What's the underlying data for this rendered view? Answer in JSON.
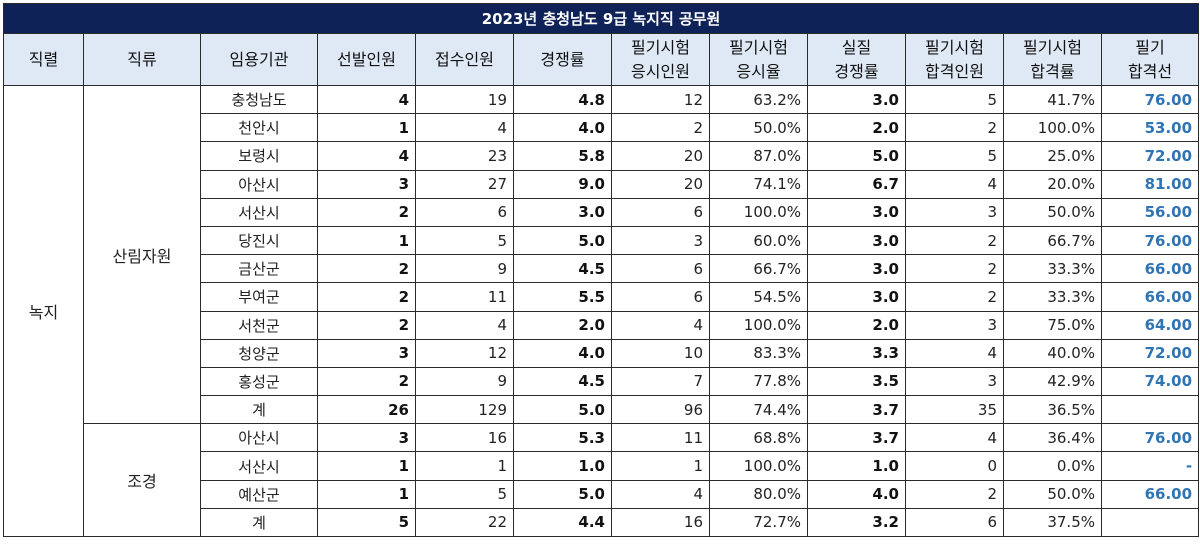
{
  "title": "2023년 충청남도 9급 녹지직 공무원",
  "headers": [
    [
      "직렬"
    ],
    [
      "직류"
    ],
    [
      "임용기관"
    ],
    [
      "선발인원"
    ],
    [
      "접수인원"
    ],
    [
      "경쟁률"
    ],
    [
      "필기시험",
      "응시인원"
    ],
    [
      "필기시험",
      "응시율"
    ],
    [
      "실질",
      "경쟁률"
    ],
    [
      "필기시험",
      "합격인원"
    ],
    [
      "필기시험",
      "합격률"
    ],
    [
      "필기",
      "합격선"
    ]
  ],
  "series_label": "녹지",
  "groups": [
    {
      "name": "산림자원",
      "rows": [
        [
          "충청남도",
          "4",
          "19",
          "4.8",
          "12",
          "63.2%",
          "3.0",
          "5",
          "41.7%",
          "76.00"
        ],
        [
          "천안시",
          "1",
          "4",
          "4.0",
          "2",
          "50.0%",
          "2.0",
          "2",
          "100.0%",
          "53.00"
        ],
        [
          "보령시",
          "4",
          "23",
          "5.8",
          "20",
          "87.0%",
          "5.0",
          "5",
          "25.0%",
          "72.00"
        ],
        [
          "아산시",
          "3",
          "27",
          "9.0",
          "20",
          "74.1%",
          "6.7",
          "4",
          "20.0%",
          "81.00"
        ],
        [
          "서산시",
          "2",
          "6",
          "3.0",
          "6",
          "100.0%",
          "3.0",
          "3",
          "50.0%",
          "56.00"
        ],
        [
          "당진시",
          "1",
          "5",
          "5.0",
          "3",
          "60.0%",
          "3.0",
          "2",
          "66.7%",
          "76.00"
        ],
        [
          "금산군",
          "2",
          "9",
          "4.5",
          "6",
          "66.7%",
          "3.0",
          "2",
          "33.3%",
          "66.00"
        ],
        [
          "부여군",
          "2",
          "11",
          "5.5",
          "6",
          "54.5%",
          "3.0",
          "2",
          "33.3%",
          "66.00"
        ],
        [
          "서천군",
          "2",
          "4",
          "2.0",
          "4",
          "100.0%",
          "2.0",
          "3",
          "75.0%",
          "64.00"
        ],
        [
          "청양군",
          "3",
          "12",
          "4.0",
          "10",
          "83.3%",
          "3.3",
          "4",
          "40.0%",
          "72.00"
        ],
        [
          "홍성군",
          "2",
          "9",
          "4.5",
          "7",
          "77.8%",
          "3.5",
          "3",
          "42.9%",
          "74.00"
        ],
        [
          "계",
          "26",
          "129",
          "5.0",
          "96",
          "74.4%",
          "3.7",
          "35",
          "36.5%",
          ""
        ]
      ]
    },
    {
      "name": "조경",
      "rows": [
        [
          "아산시",
          "3",
          "16",
          "5.3",
          "11",
          "68.8%",
          "3.7",
          "4",
          "36.4%",
          "76.00"
        ],
        [
          "서산시",
          "1",
          "1",
          "1.0",
          "1",
          "100.0%",
          "1.0",
          "0",
          "0.0%",
          "-"
        ],
        [
          "예산군",
          "1",
          "5",
          "5.0",
          "4",
          "80.0%",
          "4.0",
          "2",
          "50.0%",
          "66.00"
        ],
        [
          "계",
          "5",
          "22",
          "4.4",
          "16",
          "72.7%",
          "3.2",
          "6",
          "37.5%",
          ""
        ]
      ]
    }
  ]
}
